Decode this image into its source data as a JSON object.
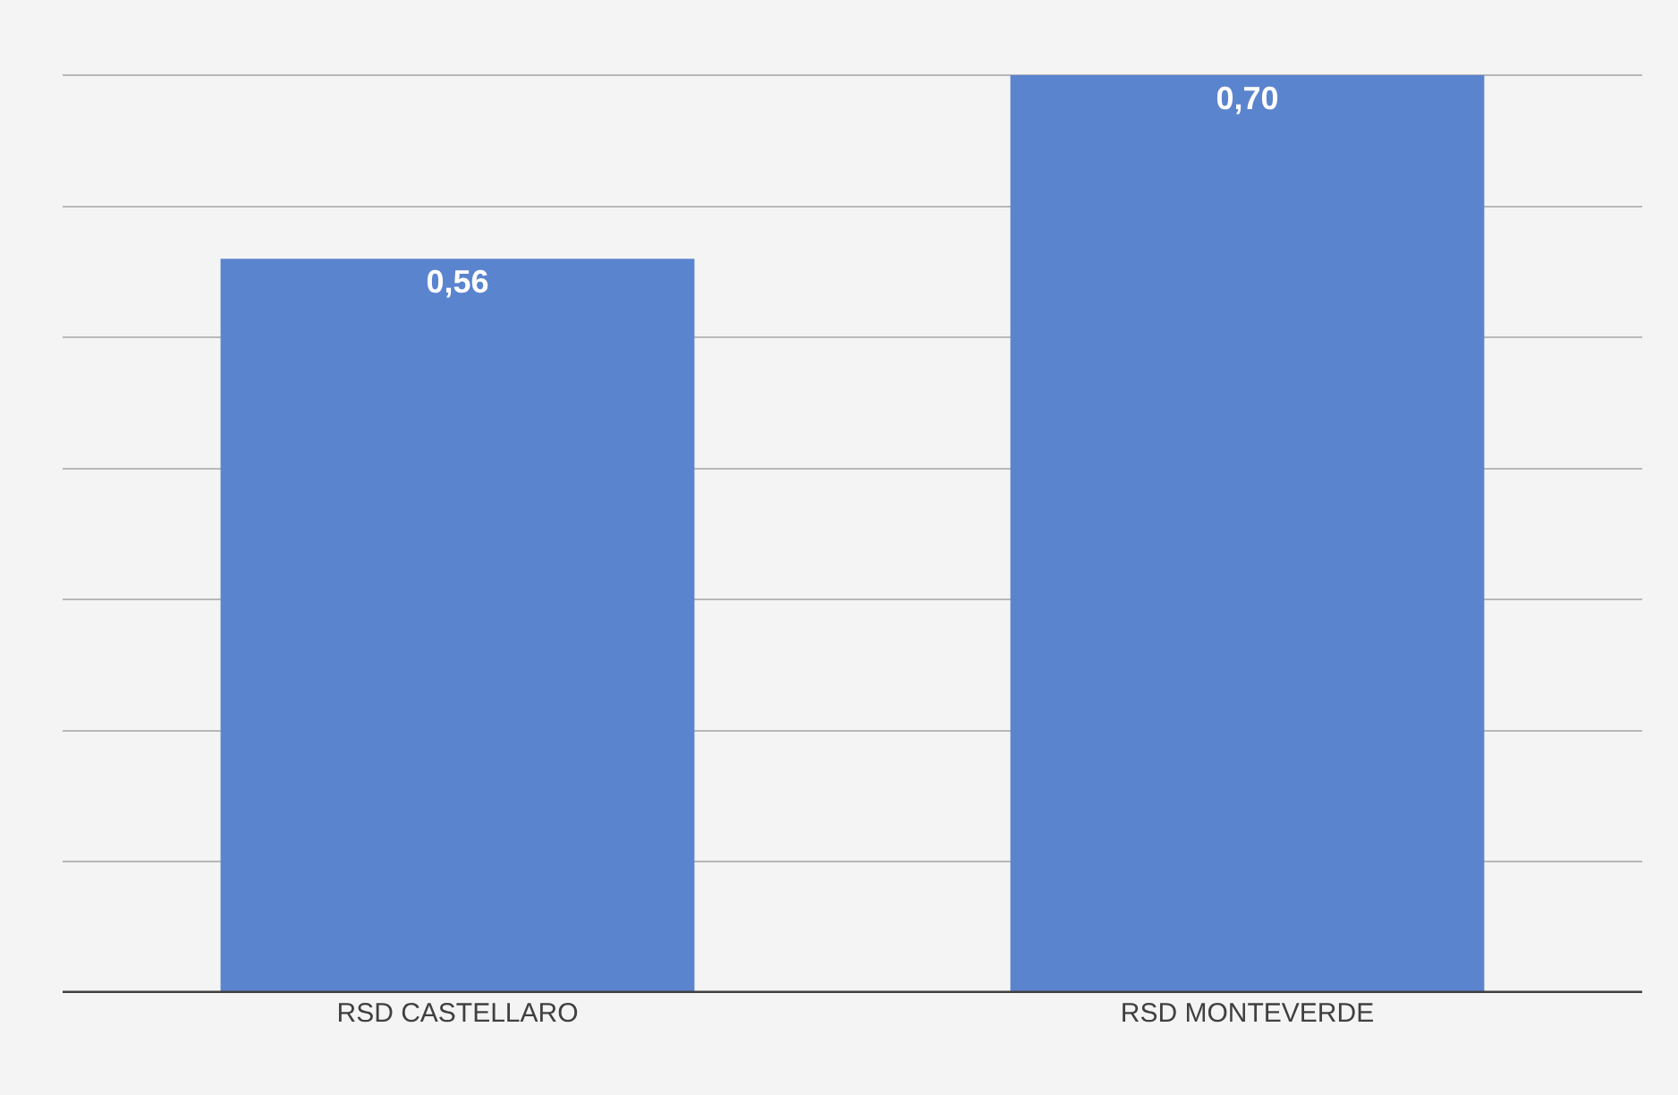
{
  "chart_data": {
    "type": "bar",
    "categories": [
      "RSD CASTELLARO",
      "RSD MONTEVERDE"
    ],
    "values": [
      0.56,
      0.7
    ],
    "value_labels": [
      "0,56",
      "0,70"
    ],
    "color": "#5b84cf",
    "grid": "y",
    "tick_labels": "x"
  }
}
